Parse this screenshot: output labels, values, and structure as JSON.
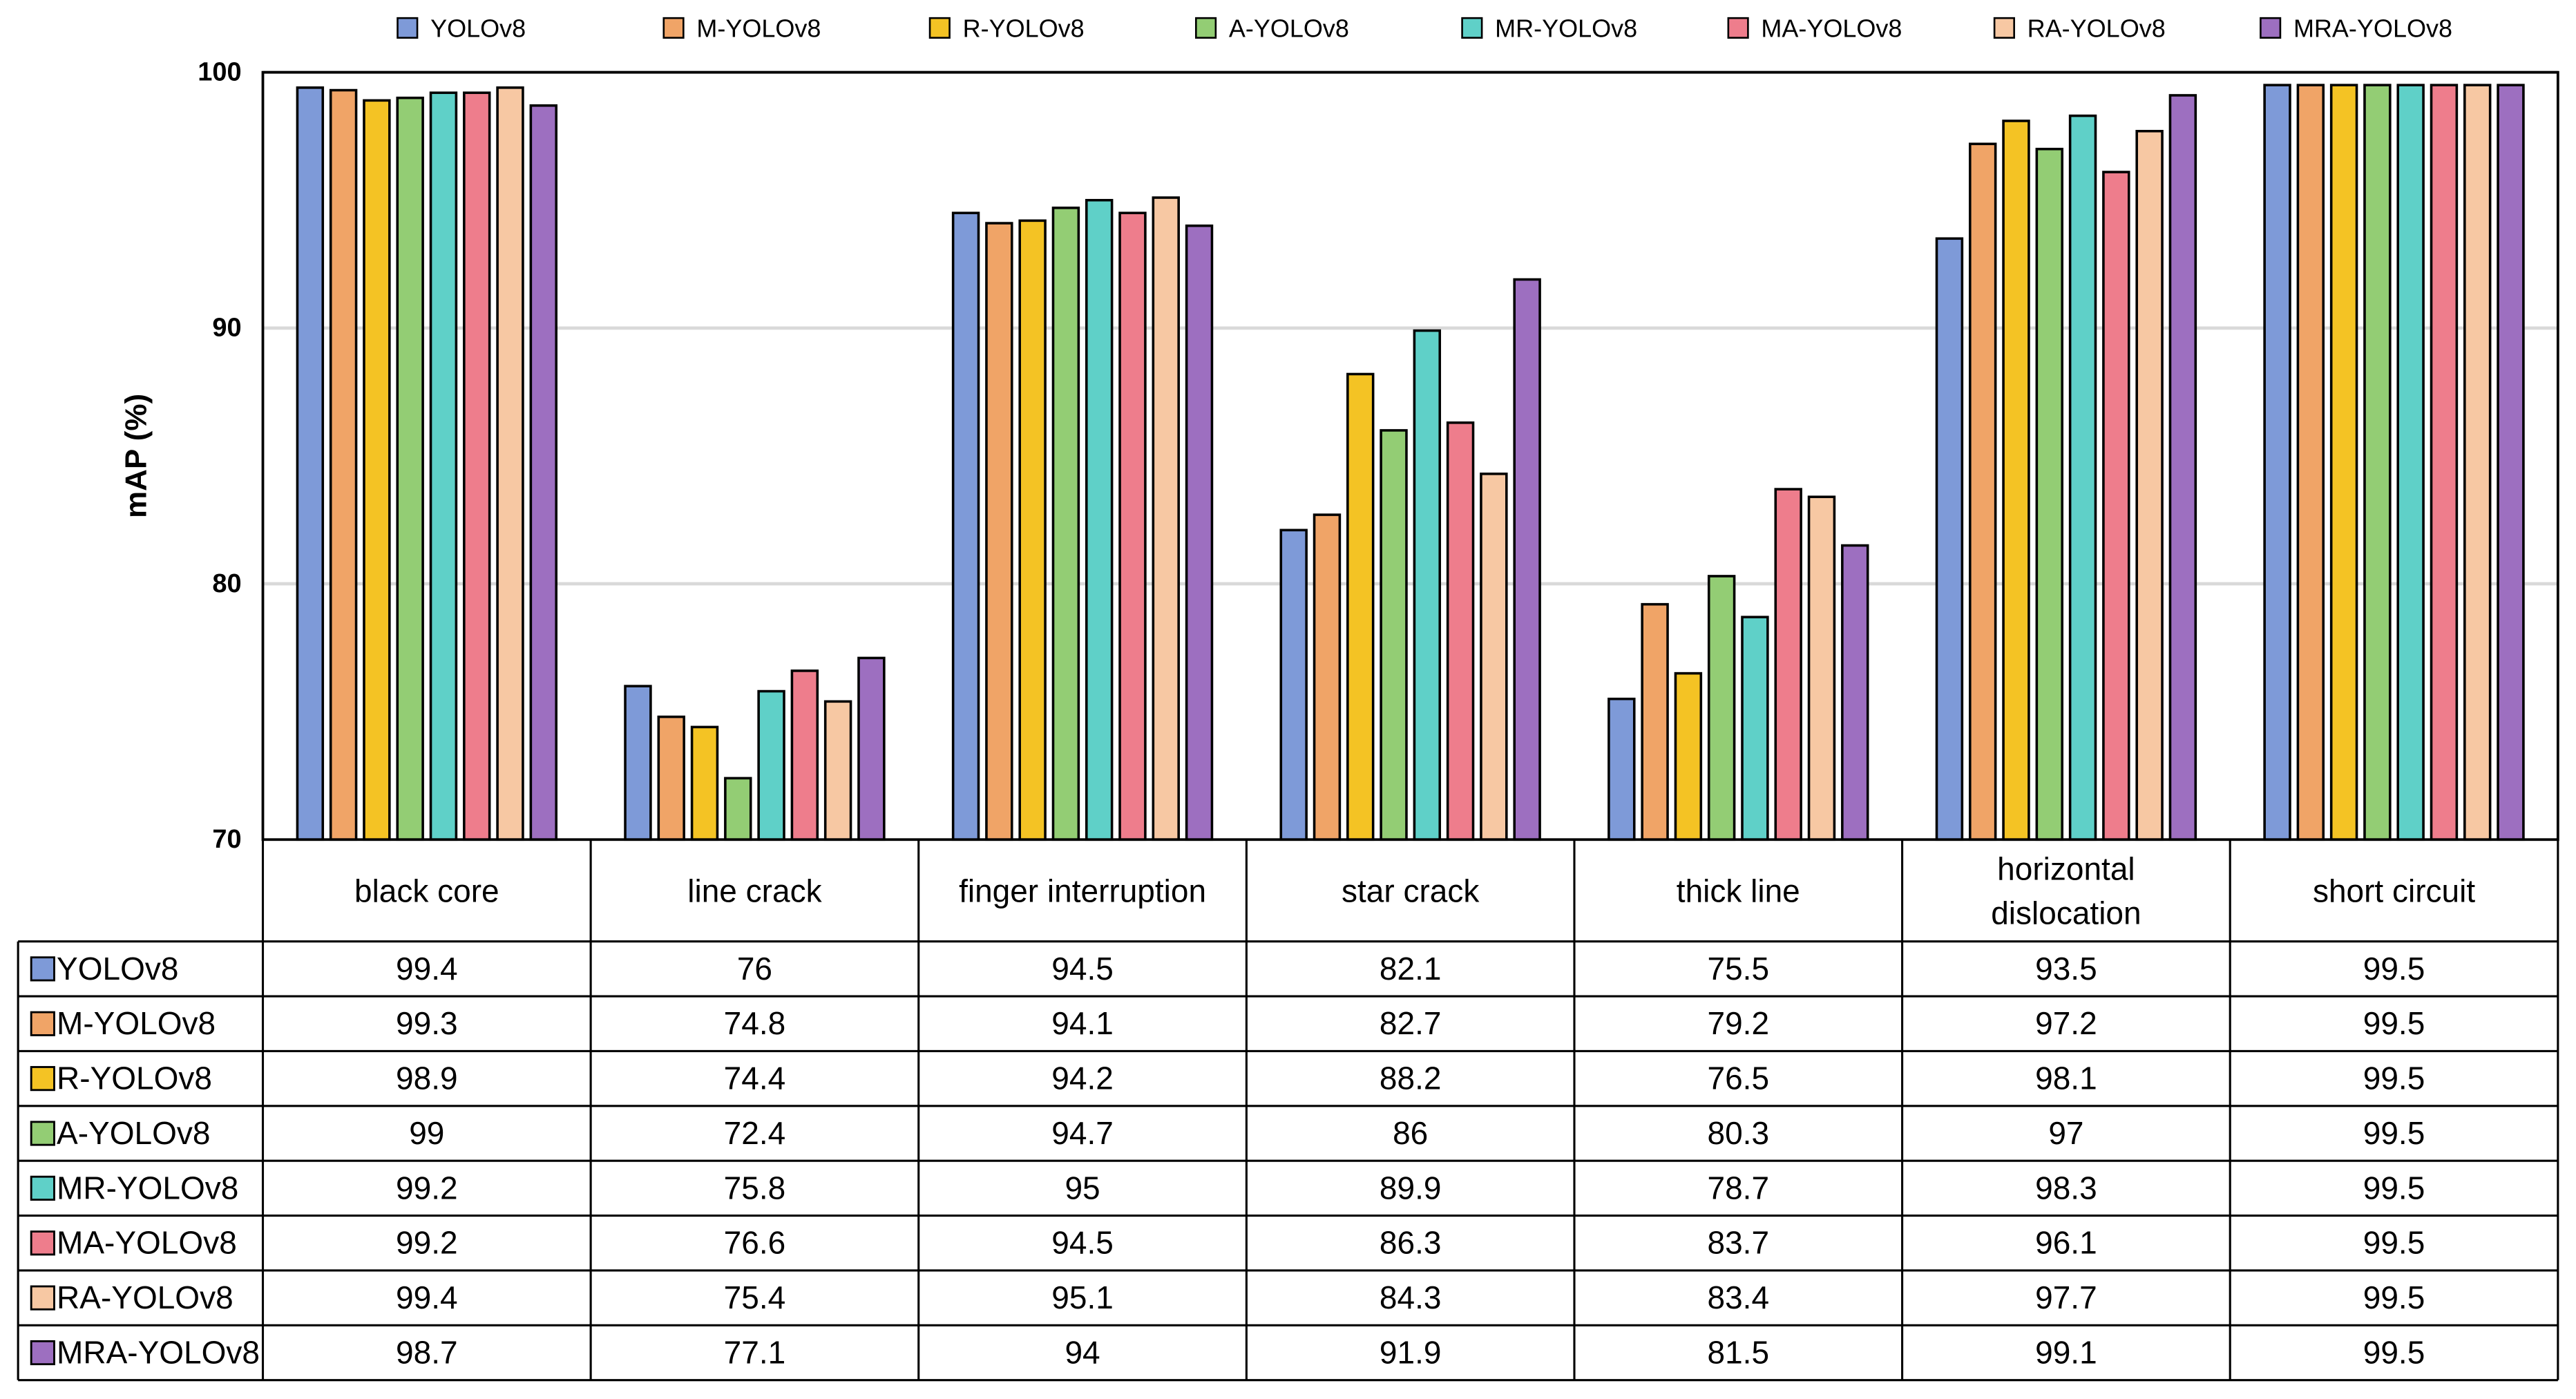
{
  "chart_data": {
    "type": "bar",
    "title": "",
    "xlabel": "",
    "ylabel": "mAP (%)",
    "ylim": [
      70,
      100
    ],
    "yticks": [
      70,
      80,
      90,
      100
    ],
    "grid": true,
    "legend_position": "top",
    "data_table": true,
    "categories": [
      [
        "black core"
      ],
      [
        "line crack"
      ],
      [
        "finger interruption"
      ],
      [
        "star crack"
      ],
      [
        "thick line"
      ],
      [
        "horizontal",
        "dislocation"
      ],
      [
        "short circuit"
      ]
    ],
    "series": [
      {
        "name": "YOLOv8",
        "color": "#7e9ad8",
        "labels": [
          "99.4",
          "76",
          "94.5",
          "82.1",
          "75.5",
          "93.5",
          "99.5"
        ],
        "values": [
          99.4,
          76,
          94.5,
          82.1,
          75.5,
          93.5,
          99.5
        ]
      },
      {
        "name": "M-YOLOv8",
        "color": "#f0a467",
        "labels": [
          "99.3",
          "74.8",
          "94.1",
          "82.7",
          "79.2",
          "97.2",
          "99.5"
        ],
        "values": [
          99.3,
          74.8,
          94.1,
          82.7,
          79.2,
          97.2,
          99.5
        ]
      },
      {
        "name": "R-YOLOv8",
        "color": "#f4c324",
        "labels": [
          "98.9",
          "74.4",
          "94.2",
          "88.2",
          "76.5",
          "98.1",
          "99.5"
        ],
        "values": [
          98.9,
          74.4,
          94.2,
          88.2,
          76.5,
          98.1,
          99.5
        ]
      },
      {
        "name": "A-YOLOv8",
        "color": "#93cd74",
        "labels": [
          "99",
          "72.4",
          "94.7",
          "86",
          "80.3",
          "97",
          "99.5"
        ],
        "values": [
          99,
          72.4,
          94.7,
          86,
          80.3,
          97,
          99.5
        ]
      },
      {
        "name": "MR-YOLOv8",
        "color": "#5fd0c8",
        "labels": [
          "99.2",
          "75.8",
          "95",
          "89.9",
          "78.7",
          "98.3",
          "99.5"
        ],
        "values": [
          99.2,
          75.8,
          95,
          89.9,
          78.7,
          98.3,
          99.5
        ]
      },
      {
        "name": "MA-YOLOv8",
        "color": "#ee7d8c",
        "labels": [
          "99.2",
          "76.6",
          "94.5",
          "86.3",
          "83.7",
          "96.1",
          "99.5"
        ],
        "values": [
          99.2,
          76.6,
          94.5,
          86.3,
          83.7,
          96.1,
          99.5
        ]
      },
      {
        "name": "RA-YOLOv8",
        "color": "#f7c8a3",
        "labels": [
          "99.4",
          "75.4",
          "95.1",
          "84.3",
          "83.4",
          "97.7",
          "99.5"
        ],
        "values": [
          99.4,
          75.4,
          95.1,
          84.3,
          83.4,
          97.7,
          99.5
        ]
      },
      {
        "name": "MRA-YOLOv8",
        "color": "#9d6fc0",
        "labels": [
          "98.7",
          "77.1",
          "94",
          "91.9",
          "81.5",
          "99.1",
          "99.5"
        ],
        "values": [
          98.7,
          77.1,
          94,
          91.9,
          81.5,
          99.1,
          99.5
        ]
      }
    ]
  }
}
